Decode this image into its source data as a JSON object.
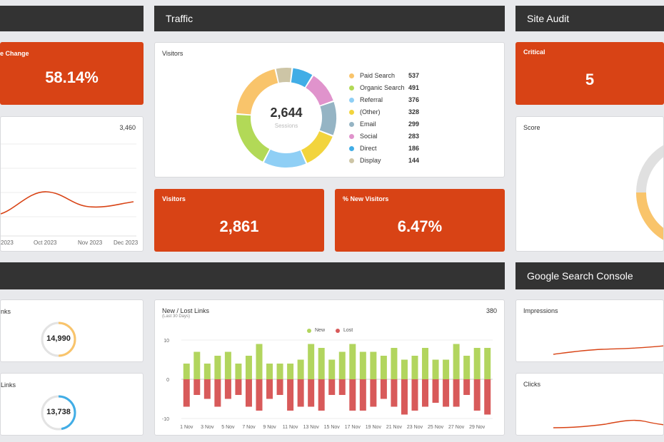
{
  "left_col": {
    "kpi_label": "e Change",
    "kpi_value": "58.14%",
    "chart_value": "3,460",
    "x_ticks": [
      "2023",
      "Oct 2023",
      "Nov 2023",
      "Dec 2023"
    ],
    "links_label": "nks",
    "links_value": "14,990",
    "links2_label": "Links",
    "links2_value": "13,738"
  },
  "traffic": {
    "header": "Traffic",
    "visitors_title": "Visitors",
    "donut_total": "2,644",
    "donut_sub": "Sessions",
    "legend": [
      {
        "name": "Paid Search",
        "value": "537",
        "color": "#f9c46b"
      },
      {
        "name": "Organic Search",
        "value": "491",
        "color": "#b2d957"
      },
      {
        "name": "Referral",
        "value": "376",
        "color": "#8fcff5"
      },
      {
        "name": "(Other)",
        "value": "328",
        "color": "#f2d43d"
      },
      {
        "name": "Email",
        "value": "299",
        "color": "#95b4c4"
      },
      {
        "name": "Social",
        "value": "283",
        "color": "#e093cc"
      },
      {
        "name": "Direct",
        "value": "186",
        "color": "#41ade6"
      },
      {
        "name": "Display",
        "value": "144",
        "color": "#cdc5a6"
      }
    ],
    "kpi_visitors_label": "Visitors",
    "kpi_visitors_value": "2,861",
    "kpi_new_label": "% New Visitors",
    "kpi_new_value": "6.47%"
  },
  "audit": {
    "header": "Site Audit",
    "critical_label": "Critical",
    "critical_value": "5",
    "score_label": "Score"
  },
  "links_chart": {
    "title": "New / Lost Links",
    "subtitle": "(Last 30 Days)",
    "total": "380",
    "legend_new": "New",
    "legend_lost": "Lost",
    "color_new": "#b2d55e",
    "color_lost": "#d85a5a",
    "y_ticks": [
      "10",
      "0",
      "-10"
    ],
    "x_ticks": [
      "1 Nov",
      "3 Nov",
      "5 Nov",
      "7 Nov",
      "9 Nov",
      "11 Nov",
      "13 Nov",
      "15 Nov",
      "17 Nov",
      "19 Nov",
      "21 Nov",
      "23 Nov",
      "25 Nov",
      "27 Nov",
      "29 Nov"
    ]
  },
  "gsc": {
    "header": "Google Search Console",
    "impressions_label": "Impressions",
    "clicks_label": "Clicks"
  },
  "chart_data": {
    "type": "bar",
    "title": "New / Lost Links",
    "ylim": [
      -10,
      10
    ],
    "categories": [
      "1 Nov",
      "2 Nov",
      "3 Nov",
      "4 Nov",
      "5 Nov",
      "6 Nov",
      "7 Nov",
      "8 Nov",
      "9 Nov",
      "10 Nov",
      "11 Nov",
      "12 Nov",
      "13 Nov",
      "14 Nov",
      "15 Nov",
      "16 Nov",
      "17 Nov",
      "18 Nov",
      "19 Nov",
      "20 Nov",
      "21 Nov",
      "22 Nov",
      "23 Nov",
      "24 Nov",
      "25 Nov",
      "26 Nov",
      "27 Nov",
      "28 Nov",
      "29 Nov",
      "30 Nov"
    ],
    "series": [
      {
        "name": "New",
        "values": [
          4,
          7,
          4,
          6,
          7,
          4,
          6,
          9,
          4,
          4,
          4,
          5,
          9,
          8,
          5,
          7,
          9,
          7,
          7,
          6,
          8,
          5,
          6,
          8,
          5,
          5,
          9,
          6,
          8,
          8
        ]
      },
      {
        "name": "Lost",
        "values": [
          -7,
          -4,
          -5,
          -7,
          -5,
          -4,
          -7,
          -8,
          -5,
          -4,
          -8,
          -7,
          -7,
          -8,
          -4,
          -4,
          -8,
          -8,
          -7,
          -5,
          -7,
          -9,
          -8,
          -7,
          -6,
          -7,
          -7,
          -4,
          -8,
          -9
        ]
      }
    ]
  }
}
